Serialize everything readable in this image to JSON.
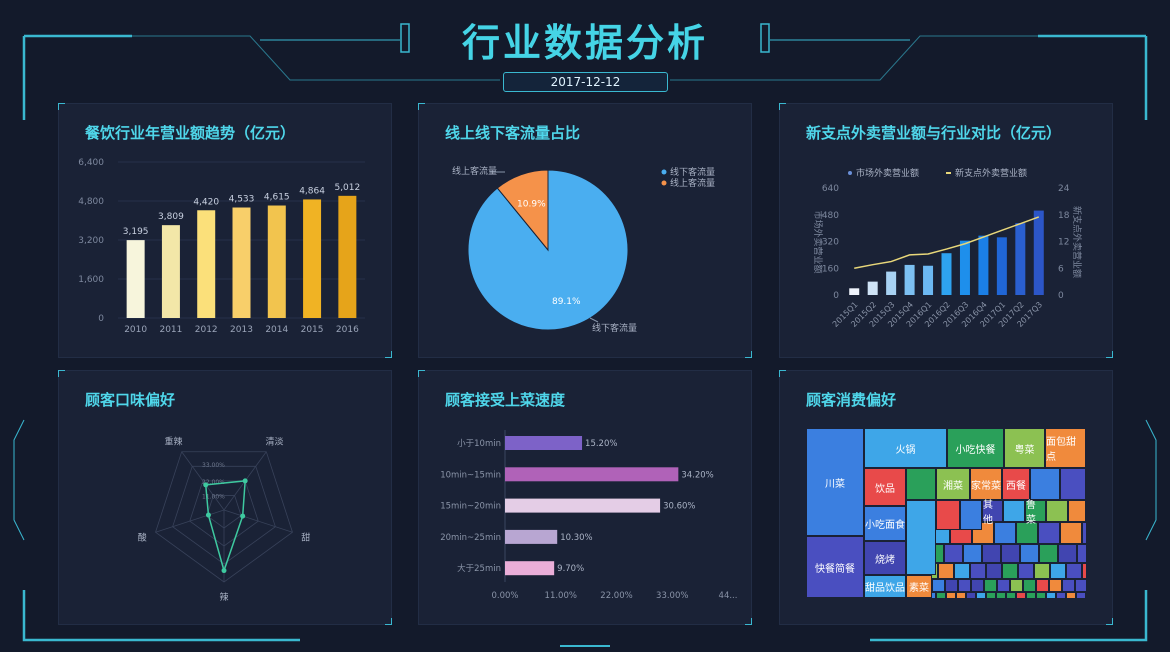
{
  "header": {
    "title": "行业数据分析",
    "date": "2017-12-12"
  },
  "colors": {
    "accent": "#45d4e6",
    "panel": "#1a2236",
    "background": "#131a2b"
  },
  "panels": [
    {
      "title": "餐饮行业年营业额趋势（亿元）"
    },
    {
      "title": "线上线下客流量占比"
    },
    {
      "title": "新支点外卖营业额与行业对比（亿元）"
    },
    {
      "title": "顾客口味偏好"
    },
    {
      "title": "顾客接受上菜速度"
    },
    {
      "title": "顾客消费偏好"
    }
  ],
  "chart_data": [
    {
      "type": "bar",
      "categories": [
        "2010",
        "2011",
        "2012",
        "2013",
        "2014",
        "2015",
        "2016"
      ],
      "values": [
        3195,
        3809,
        4420,
        4533,
        4615,
        4864,
        5012
      ],
      "data_labels": [
        "3,195",
        "3,809",
        "4,420",
        "4,533",
        "4,615",
        "4,864",
        "5,012"
      ],
      "ylim": [
        0,
        6400
      ],
      "yticks": [
        "0",
        "1,600",
        "3,200",
        "4,800",
        "6,400"
      ],
      "colors": [
        "#f7f5dc",
        "#f3e7a8",
        "#fbe07a",
        "#f8cf6a",
        "#f2c44e",
        "#f0b324",
        "#e6a41a"
      ]
    },
    {
      "type": "pie",
      "slices": [
        {
          "name": "线下客流量",
          "value": 89.1,
          "label": "89.1%",
          "color": "#4aaef0"
        },
        {
          "name": "线上客流量",
          "value": 10.9,
          "label": "10.9%",
          "color": "#f5924a"
        }
      ],
      "legend": [
        "线下客流量",
        "线上客流量"
      ],
      "legend_placement": "top-right"
    },
    {
      "type": "bar+line",
      "categories": [
        "2015Q1",
        "2015Q2",
        "2015Q3",
        "2015Q4",
        "2016Q1",
        "2016Q2",
        "2016Q3",
        "2016Q4",
        "2017Q1",
        "2017Q2",
        "2017Q3"
      ],
      "series": [
        {
          "name": "市场外卖营业额",
          "type": "bar",
          "axis": "left",
          "values": [
            40,
            80,
            140,
            180,
            175,
            250,
            325,
            355,
            345,
            430,
            505
          ]
        },
        {
          "name": "新支点外卖营业额",
          "type": "line",
          "axis": "right",
          "values": [
            6,
            6.8,
            7.5,
            9,
            9.2,
            10.3,
            11.5,
            13,
            14.5,
            16,
            17.5
          ],
          "color": "#e8d77a"
        }
      ],
      "ylabel_left": "市场外卖营业额",
      "ylabel_right": "新支点外卖营业额",
      "ylim_left": [
        0,
        640
      ],
      "ylim_right": [
        0,
        24
      ],
      "yticks_left": [
        "0",
        "160",
        "320",
        "480",
        "640"
      ],
      "yticks_right": [
        "0",
        "6",
        "12",
        "18",
        "24"
      ]
    },
    {
      "type": "radar",
      "axes": [
        "重辣",
        "清淡",
        "甜",
        "辣",
        "酸"
      ],
      "values": [
        19,
        22,
        12,
        37,
        10
      ],
      "max": 44,
      "ring_labels": [
        "11.00%",
        "22.00%",
        "33.00%"
      ],
      "color": "#3ec9a0"
    },
    {
      "type": "bar",
      "orientation": "horizontal",
      "categories": [
        "小于10min",
        "10min~15min",
        "15min~20min",
        "20min~25min",
        "大于25min"
      ],
      "values": [
        15.2,
        34.2,
        30.6,
        10.3,
        9.7
      ],
      "data_labels": [
        "15.20%",
        "34.20%",
        "30.60%",
        "10.30%",
        "9.70%"
      ],
      "xlim": [
        0,
        44
      ],
      "xticks": [
        "0.00%",
        "11.00%",
        "22.00%",
        "33.00%",
        "44..."
      ],
      "colors": [
        "#7d62c8",
        "#b062b8",
        "#e4cde6",
        "#b8a6d2",
        "#eaaed8"
      ]
    },
    {
      "type": "treemap",
      "cells": [
        "川菜",
        "快餐简餐",
        "火锅",
        "小吃快餐",
        "粤菜",
        "面包甜点",
        "饮品",
        "湘菜",
        "家常菜",
        "西餐",
        "小吃面食",
        "烧烤",
        "甜品饮品",
        "素菜",
        "其他",
        "鲁菜"
      ],
      "palette": [
        "#3b7fe0",
        "#4a4fc0",
        "#3ea6e8",
        "#2aa05a",
        "#8cc152",
        "#f08a3c",
        "#e84a4a",
        "#4145b0"
      ]
    }
  ]
}
